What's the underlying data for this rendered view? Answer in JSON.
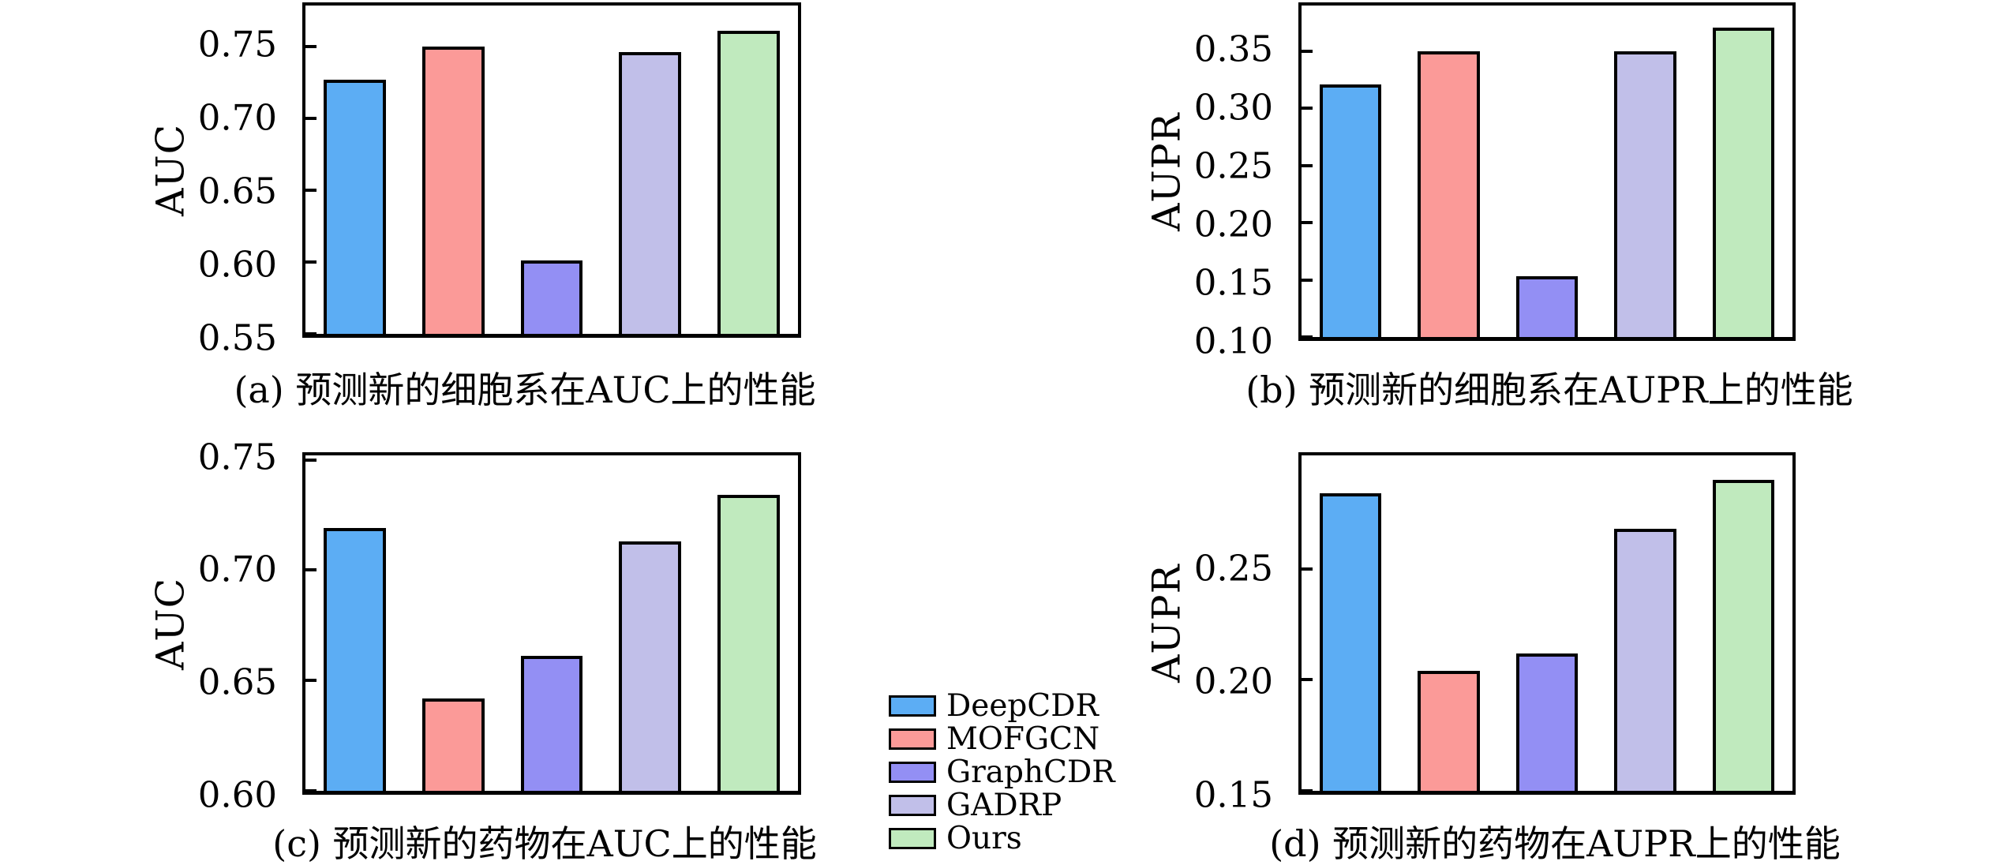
{
  "figure": {
    "background": "#ffffff",
    "frame_color": "#000000",
    "layout": "2x2 bar chart panels with shared method legend at bottom center"
  },
  "legend": {
    "position": "bottom-center between panels c and d",
    "items": [
      {
        "label": "DeepCDR",
        "color": "#5cadf4"
      },
      {
        "label": "MOFGCN",
        "color": "#fb9a98"
      },
      {
        "label": "GraphCDR",
        "color": "#938ff4"
      },
      {
        "label": "GADRP",
        "color": "#c1bfe9"
      },
      {
        "label": "Ours",
        "color": "#c0eabe"
      }
    ]
  },
  "chart_data": [
    {
      "panel": "a",
      "type": "bar",
      "title": "",
      "xlabel": "",
      "ylabel": "AUC",
      "caption": "(a) 预测新的细胞系在AUC上的性能",
      "categories": [
        "DeepCDR",
        "MOFGCN",
        "GraphCDR",
        "GADRP",
        "Ours"
      ],
      "values": [
        0.727,
        0.75,
        0.601,
        0.746,
        0.761
      ],
      "yticks": [
        0.55,
        0.6,
        0.65,
        0.7,
        0.75
      ],
      "ylim": [
        0.55,
        0.7785
      ],
      "grid": false,
      "tick_direction": "in"
    },
    {
      "panel": "b",
      "type": "bar",
      "title": "",
      "xlabel": "",
      "ylabel": "AUPR",
      "caption": "(b) 预测新的细胞系在AUPR上的性能",
      "categories": [
        "DeepCDR",
        "MOFGCN",
        "GraphCDR",
        "GADRP",
        "Ours"
      ],
      "values": [
        0.321,
        0.35,
        0.153,
        0.35,
        0.371
      ],
      "yticks": [
        0.1,
        0.15,
        0.2,
        0.25,
        0.3,
        0.35
      ],
      "ylim": [
        0.1,
        0.39
      ],
      "grid": false,
      "tick_direction": "in"
    },
    {
      "panel": "c",
      "type": "bar",
      "title": "",
      "xlabel": "",
      "ylabel": "AUC",
      "caption": "(c) 预测新的药物在AUC上的性能",
      "categories": [
        "DeepCDR",
        "MOFGCN",
        "GraphCDR",
        "GADRP",
        "Ours"
      ],
      "values": [
        0.719,
        0.642,
        0.661,
        0.713,
        0.734
      ],
      "yticks": [
        0.6,
        0.65,
        0.7,
        0.75
      ],
      "ylim": [
        0.6,
        0.752
      ],
      "grid": false,
      "tick_direction": "in"
    },
    {
      "panel": "d",
      "type": "bar",
      "title": "",
      "xlabel": "",
      "ylabel": "AUPR",
      "caption": "(d) 预测新的药物在AUPR上的性能",
      "categories": [
        "DeepCDR",
        "MOFGCN",
        "GraphCDR",
        "GADRP",
        "Ours"
      ],
      "values": [
        0.284,
        0.204,
        0.212,
        0.268,
        0.29
      ],
      "yticks": [
        0.15,
        0.2,
        0.25
      ],
      "ylim": [
        0.15,
        0.301
      ],
      "grid": false,
      "tick_direction": "in"
    }
  ]
}
